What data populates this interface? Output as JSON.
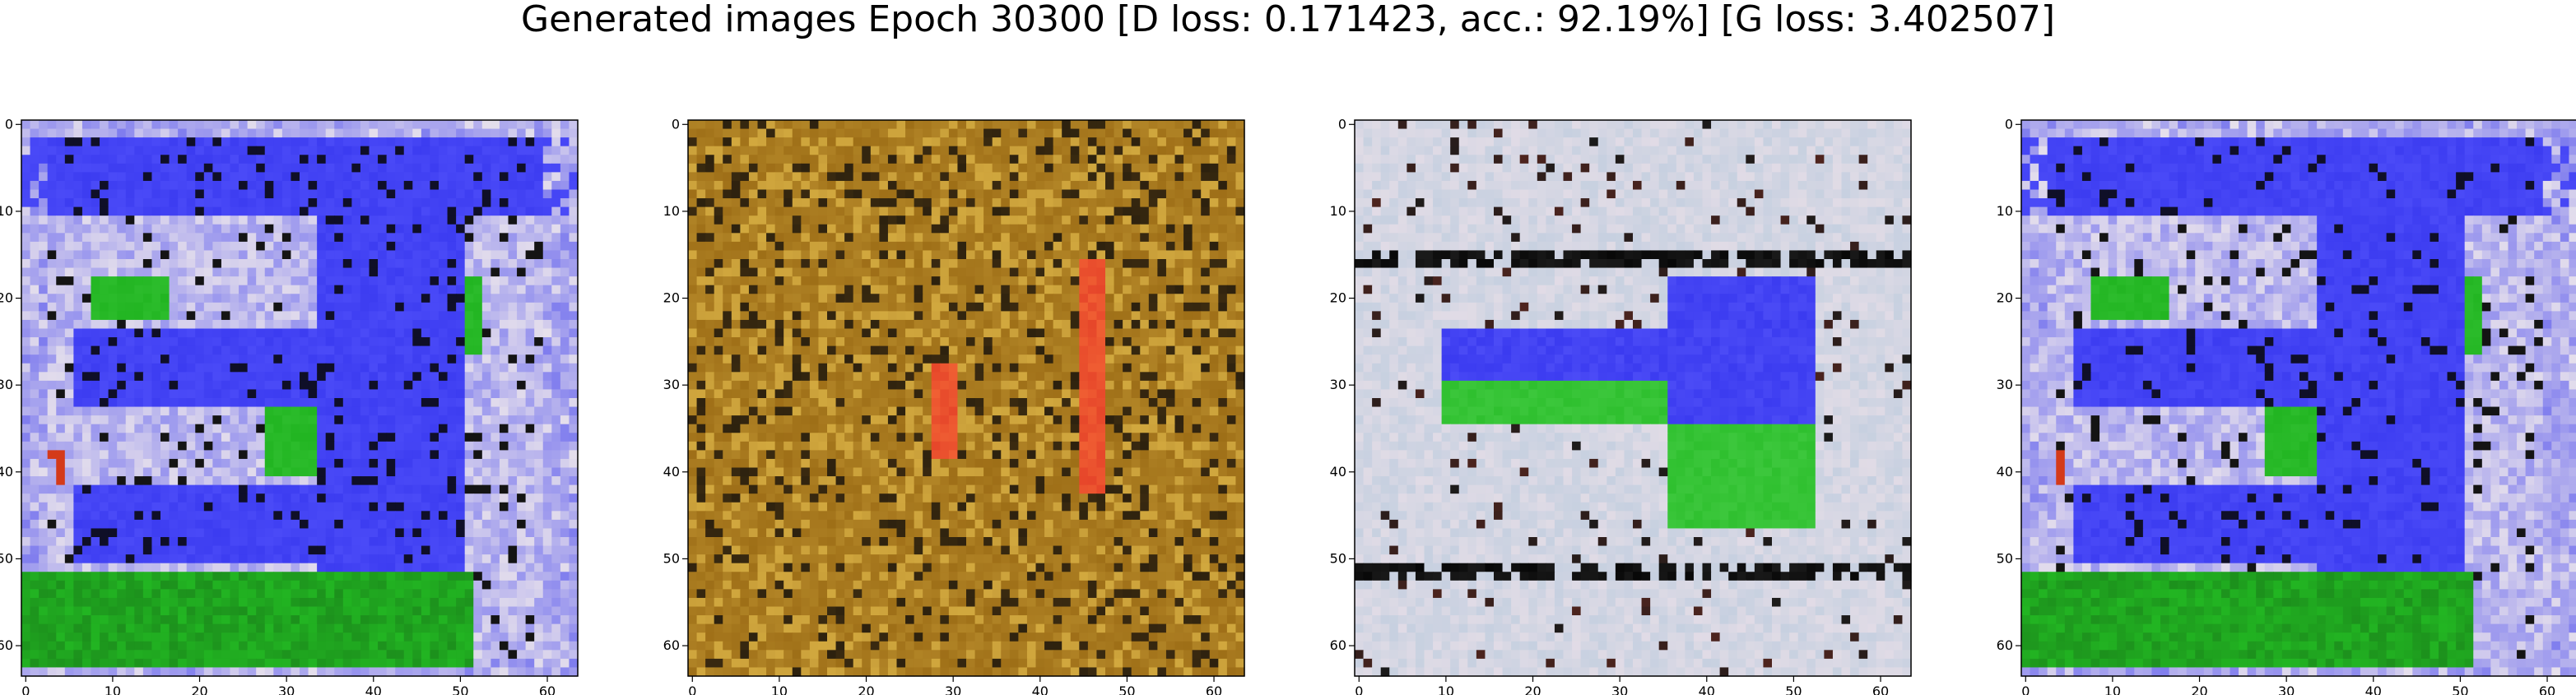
{
  "figure": {
    "title": "Generated images Epoch 30300 [D loss: 0.171423, acc.: 92.19%] [G loss: 3.402507]"
  },
  "panels": [
    {
      "id": "image-1",
      "kind": "image",
      "theme": "blue-green-white",
      "colors": {
        "primary": "#3b3bf0",
        "secondary": "#22b522",
        "light": "#e6e0ec",
        "accent": "#d43a1a"
      }
    },
    {
      "id": "image-2",
      "kind": "image",
      "theme": "brown-gold-noise",
      "colors": {
        "primary": "#9a6a14",
        "secondary": "#caa03a",
        "dark": "#3a2a10",
        "accent": "#e6462a"
      }
    },
    {
      "id": "image-3",
      "kind": "image",
      "theme": "white-with-blue-green-shape",
      "colors": {
        "primary": "#e2dce6",
        "secondary": "#3b3bf0",
        "tertiary": "#2fc02f",
        "dark": "#1a1a1a"
      }
    },
    {
      "id": "image-4",
      "kind": "image",
      "theme": "blue-green-white",
      "colors": {
        "primary": "#3b3bf0",
        "secondary": "#22b522",
        "light": "#e6e0ec",
        "accent": "#d43a1a"
      }
    }
  ],
  "axes": {
    "x_ticks": [
      "0",
      "10",
      "20",
      "30",
      "40",
      "50",
      "60"
    ],
    "y_ticks": [
      "0",
      "10",
      "20",
      "30",
      "40",
      "50",
      "60"
    ],
    "x_tick_values": [
      0,
      10,
      20,
      30,
      40,
      50,
      60
    ],
    "y_tick_values": [
      0,
      10,
      20,
      30,
      40,
      50,
      60
    ],
    "pixel_range": [
      0,
      64
    ]
  }
}
